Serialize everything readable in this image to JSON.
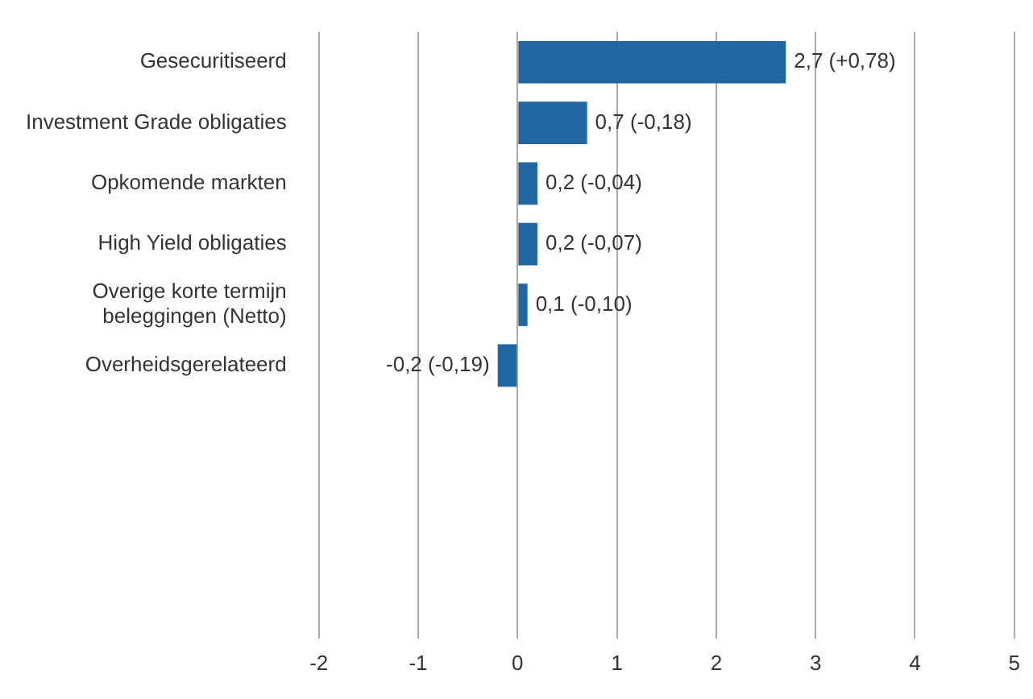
{
  "chart_data": {
    "type": "bar",
    "orientation": "horizontal",
    "categories": [
      "Gesecuritiseerd",
      "Investment Grade obligaties",
      "Opkomende markten",
      "High Yield obligaties",
      "Overige korte termijn beleggingen (Netto)",
      "Overheidsgerelateerd",
      null,
      null,
      null,
      null
    ],
    "values": [
      2.7,
      0.7,
      0.2,
      0.2,
      0.1,
      -0.2,
      null,
      null,
      null,
      null
    ],
    "value_labels": [
      "2,7 (+0,78)",
      "0,7 (-0,18)",
      "0,2 (-0,04)",
      "0,2 (-0,07)",
      "0,1 (-0,10)",
      "-0,2 (-0,19)",
      null,
      null,
      null,
      null
    ],
    "color": "#1f66a3",
    "xlim": [
      -2,
      5
    ],
    "xticks": [
      -2,
      -1,
      0,
      1,
      2,
      3,
      4,
      5
    ],
    "grid": "x",
    "legend": false
  }
}
